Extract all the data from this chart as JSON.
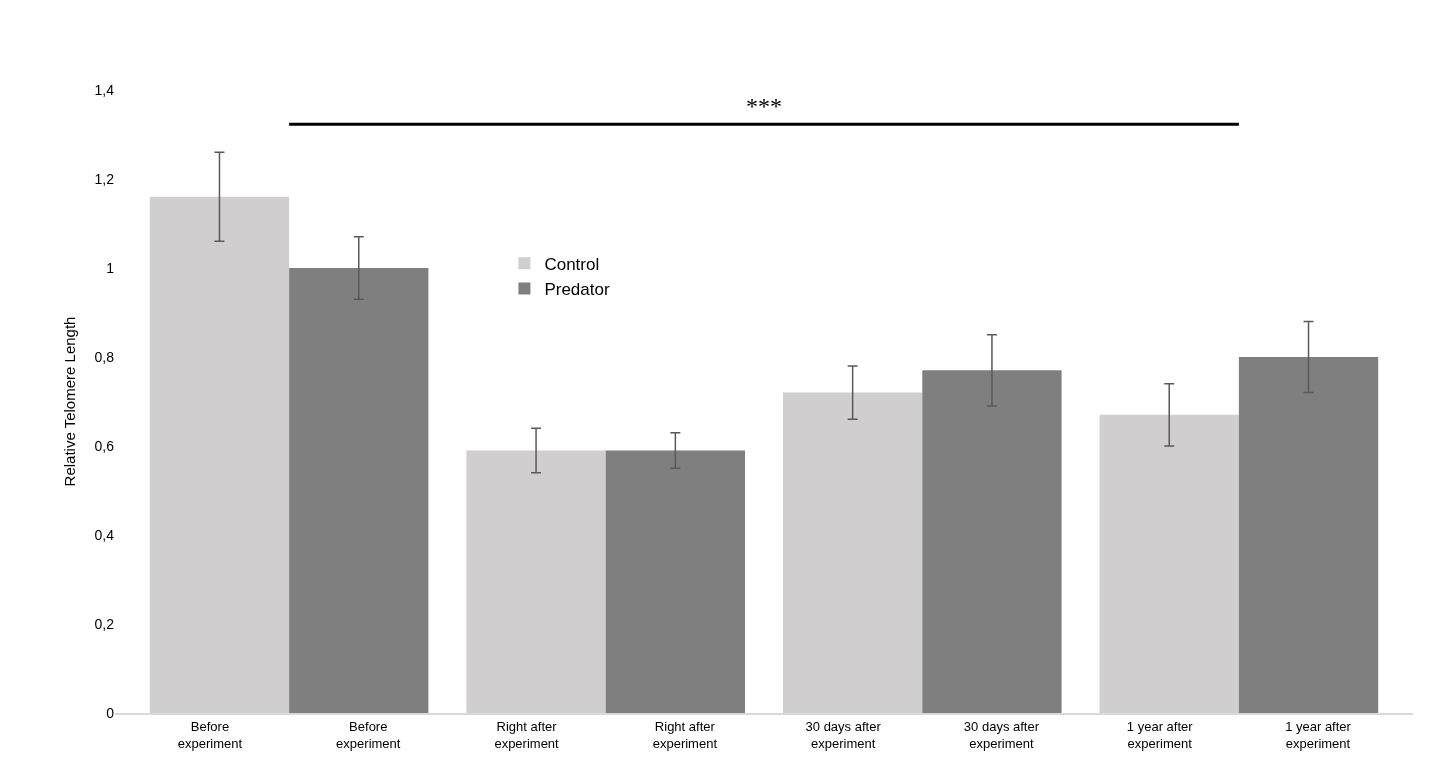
{
  "chart_data": {
    "type": "bar",
    "ylabel": "Relative Telomere Length",
    "categories": [
      "Before experiment",
      "Before experiment",
      "Right after experiment",
      "Right after experiment",
      "30 days after experiment",
      "30 days after experiment",
      "1 year after experiment",
      "1 year after experiment"
    ],
    "series": [
      {
        "name": "Control",
        "color": "#d0cecf",
        "values": [
          1.16,
          null,
          0.59,
          null,
          0.72,
          null,
          0.67,
          null
        ],
        "errors": [
          0.1,
          null,
          0.05,
          null,
          0.06,
          null,
          0.07,
          null
        ]
      },
      {
        "name": "Predator",
        "color": "#7f7f7f",
        "values": [
          null,
          1.0,
          null,
          0.59,
          null,
          0.77,
          null,
          0.8
        ],
        "errors": [
          null,
          0.07,
          null,
          0.04,
          null,
          0.08,
          null,
          0.08
        ]
      }
    ],
    "ylim": [
      0,
      1.4
    ],
    "yticks": [
      0,
      {
        "value": 0.2,
        "label": "0,2"
      },
      {
        "value": 0.4,
        "label": "0,4"
      },
      {
        "value": 0.6,
        "label": "0,6"
      },
      {
        "value": 0.8,
        "label": "0,8"
      },
      1,
      {
        "value": 1.2,
        "label": "1,2"
      },
      {
        "value": 1.4,
        "label": "1,4"
      }
    ],
    "annotations": [
      "***"
    ],
    "grid": false,
    "legend": "top left"
  }
}
